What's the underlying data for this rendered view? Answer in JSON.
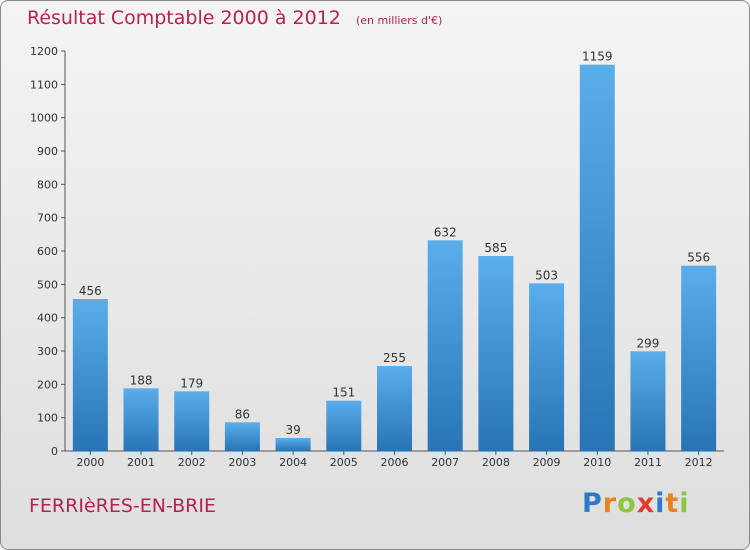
{
  "title": "Résultat Comptable 2000 à 2012",
  "subtitle": "(en milliers d'€)",
  "commune": "FERRIèRES-EN-BRIE",
  "logo": {
    "letters": [
      "P",
      "r",
      "o",
      "x",
      "i",
      "t",
      "i"
    ],
    "colors": [
      "#2e78c8",
      "#e8821e",
      "#8cc63e",
      "#e53a2e",
      "#2e78c8",
      "#e8821e",
      "#8cc63e"
    ]
  },
  "colors": {
    "bar_top": "#5aaeea",
    "bar_bottom": "#2874b6",
    "title": "#b5234f"
  },
  "chart_data": {
    "type": "bar",
    "categories": [
      "2000",
      "2001",
      "2002",
      "2003",
      "2004",
      "2005",
      "2006",
      "2007",
      "2008",
      "2009",
      "2010",
      "2011",
      "2012"
    ],
    "values": [
      456,
      188,
      179,
      86,
      39,
      151,
      255,
      632,
      585,
      503,
      1159,
      299,
      556
    ],
    "yticks": [
      0,
      100,
      200,
      300,
      400,
      500,
      600,
      700,
      800,
      900,
      1000,
      1100,
      1200
    ],
    "ylim": [
      0,
      1200
    ],
    "grid": false,
    "title": "Résultat Comptable 2000 à 2012",
    "xlabel": "",
    "ylabel": ""
  }
}
